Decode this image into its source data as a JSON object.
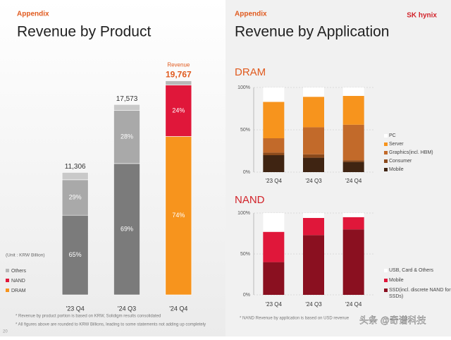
{
  "header": {
    "left_tag": "Appendix",
    "right_tag": "Appendix",
    "left_title": "Revenue by Product",
    "right_title": "Revenue by Application",
    "logo": "SK hynix",
    "unit": "(Unit : KRW Billion)",
    "page": "20",
    "watermark": "头条 @奇谱科技"
  },
  "footnotes": [
    "* Revenue by product portion is based on KRW, Solidigm results consolidated",
    "* All figures above are rounded to KRW Billions, leading to some statements not adding up completely",
    "* NAND Revenue by application is based on USD revenue"
  ],
  "chart_data": [
    {
      "type": "product",
      "title": "Revenue by Product",
      "annotation": "Revenue",
      "categories": [
        "'23 Q4",
        "'24 Q3",
        "'24 Q4"
      ],
      "totals": [
        11306,
        17573,
        19767
      ],
      "total_labels": [
        "11,306",
        "17,573",
        "19,767"
      ],
      "highlight": "'24 Q4",
      "ylim": [
        0,
        20000
      ],
      "series": [
        {
          "name": "DRAM",
          "color": "#f7941d",
          "muted_color": "#7b7b7b",
          "values": [
            65,
            69,
            74
          ],
          "value_labels": [
            "65%",
            "69%",
            "74%"
          ]
        },
        {
          "name": "NAND",
          "color": "#e0173a",
          "muted_color": "#a9a9a9",
          "values": [
            29,
            28,
            24
          ],
          "value_labels": [
            "29%",
            "28%",
            "24%"
          ]
        },
        {
          "name": "Others",
          "color": "#b8b8b8",
          "muted_color": "#c9c9c9",
          "values": [
            6,
            3,
            2
          ]
        }
      ]
    },
    {
      "type": "stacked",
      "title": "DRAM",
      "categories": [
        "'23 Q4",
        "'24 Q3",
        "'24 Q4"
      ],
      "ylim": [
        0,
        100
      ],
      "yticks": [
        {
          "value": 0,
          "label": "0%"
        },
        {
          "value": 50,
          "label": "50%"
        },
        {
          "value": 100,
          "label": "100%"
        }
      ],
      "grid": true,
      "series": [
        {
          "name": "Mobile",
          "color": "#3f2412",
          "values": [
            20,
            17,
            12
          ]
        },
        {
          "name": "Consumer",
          "color": "#8b4a1c",
          "values": [
            3,
            4,
            2
          ]
        },
        {
          "name": "Graphics(incl. HBM)",
          "color": "#c26a2a",
          "values": [
            17,
            32,
            42
          ]
        },
        {
          "name": "Server",
          "color": "#f7941d",
          "values": [
            43,
            36,
            34
          ]
        },
        {
          "name": "PC",
          "color": "#ffffff",
          "values": [
            17,
            11,
            10
          ]
        }
      ]
    },
    {
      "type": "stacked",
      "title": "NAND",
      "categories": [
        "'23 Q4",
        "'24 Q3",
        "'24 Q4"
      ],
      "ylim": [
        0,
        100
      ],
      "yticks": [
        {
          "value": 0,
          "label": "0%"
        },
        {
          "value": 50,
          "label": "50%"
        },
        {
          "value": 100,
          "label": "100%"
        }
      ],
      "grid": true,
      "series": [
        {
          "name": "SSD(incl. discrete NAND for SSDs)",
          "color": "#8a1020",
          "values": [
            40,
            73,
            80
          ]
        },
        {
          "name": "Mobile",
          "color": "#e0173a",
          "values": [
            37,
            21,
            15
          ]
        },
        {
          "name": "USB, Card & Others",
          "color": "#ffffff",
          "values": [
            23,
            6,
            5
          ]
        }
      ]
    }
  ]
}
